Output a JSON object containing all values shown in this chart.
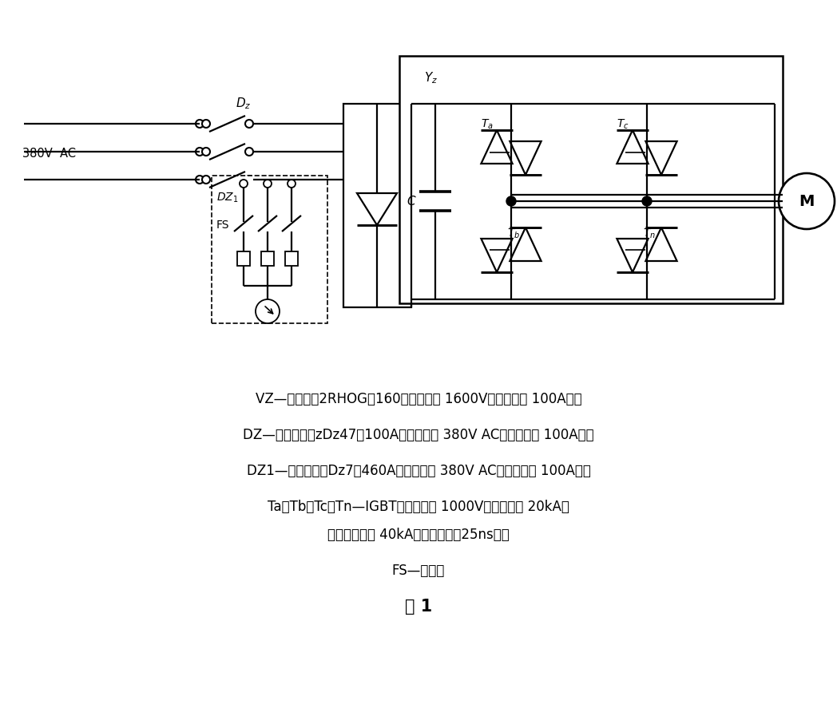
{
  "bg_color": "#ffffff",
  "line_color": "#000000",
  "lw": 1.6,
  "lw_thin": 1.2,
  "desc_lines": [
    "VZ—整流桥（2RHOG－160，击穿电压 1600V，工作电流 100A）；",
    "DZ—空气开关（zDz47－100A，工作电压 380V AC，工作电流 100A）；",
    "DZ1—空气开关（Dz7－460A，工作电压 380V AC，工作电流 100A）；",
    "Ta、Tb、Tc、Tn—IGBT（击穿电压 1000V，工作电流 20kA，",
    "最大工作电流 40kA，动作时间＜25ns）；",
    "FS—防雷器",
    "图 1"
  ],
  "figsize": [
    10.48,
    8.97
  ],
  "dpi": 100
}
